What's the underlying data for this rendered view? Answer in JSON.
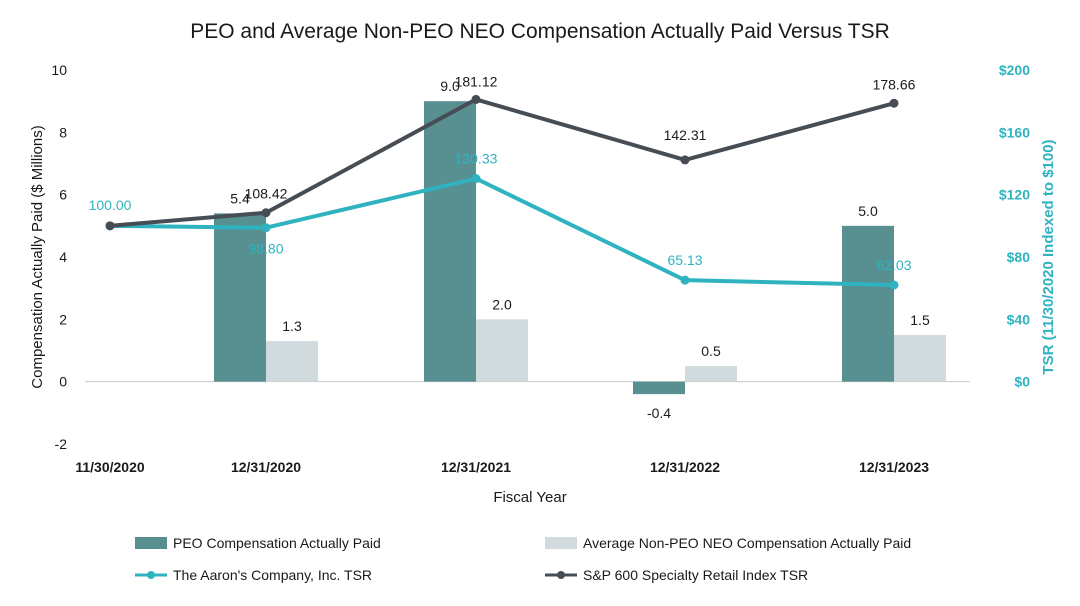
{
  "chart_data": {
    "type": "bar",
    "title": "PEO and Average Non-PEO NEO Compensation Actually Paid Versus TSR",
    "xlabel": "Fiscal Year",
    "ylabel": "Compensation Actually Paid ($ Millions)",
    "ylabel_right": "TSR (11/30/2020 Indexed to $100)",
    "ylim": [
      -2,
      10
    ],
    "ylim_right": [
      -40,
      200
    ],
    "yticks": [
      "-2",
      "0",
      "2",
      "4",
      "6",
      "8",
      "10"
    ],
    "yticks_right": [
      "$0",
      "$40",
      "$80",
      "$120",
      "$160",
      "$200"
    ],
    "categories": [
      "11/30/2020",
      "12/31/2020",
      "12/31/2021",
      "12/31/2022",
      "12/31/2023"
    ],
    "bar_series": [
      {
        "name": "PEO Compensation Actually Paid",
        "color": "#588f91",
        "values": [
          null,
          5.4,
          9.0,
          -0.4,
          5.0
        ],
        "labels": [
          "",
          "5.4",
          "9.0",
          "-0.4",
          "5.0"
        ]
      },
      {
        "name": "Average Non-PEO NEO Compensation Actually Paid",
        "color": "#d1dbde",
        "values": [
          null,
          1.3,
          2.0,
          0.5,
          1.5
        ],
        "labels": [
          "",
          "1.3",
          "2.0",
          "0.5",
          "1.5"
        ]
      }
    ],
    "line_series": [
      {
        "name": "The Aaron's Company, Inc. TSR",
        "color": "#2fb3c0",
        "values": [
          100.0,
          98.8,
          130.33,
          65.13,
          62.03
        ],
        "labels": [
          "100.00",
          "98.80",
          "130.33",
          "65.13",
          "62.03"
        ]
      },
      {
        "name": "S&P 600 Specialty Retail Index TSR",
        "color": "#474d54",
        "values": [
          100.0,
          108.42,
          181.12,
          142.31,
          178.66
        ],
        "labels": [
          "",
          "108.42",
          "181.12",
          "142.31",
          "178.66"
        ]
      }
    ],
    "legend_position": "bottom"
  }
}
